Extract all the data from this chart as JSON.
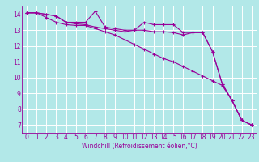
{
  "xlabel": "Windchill (Refroidissement éolien,°C)",
  "background_color": "#b2e8e8",
  "grid_color": "#ffffff",
  "line_color": "#990099",
  "x_ticks": [
    0,
    1,
    2,
    3,
    4,
    5,
    6,
    7,
    8,
    9,
    10,
    11,
    12,
    13,
    14,
    15,
    16,
    17,
    18,
    19,
    20,
    21,
    22,
    23
  ],
  "y_ticks": [
    7,
    8,
    9,
    10,
    11,
    12,
    13,
    14
  ],
  "ylim": [
    6.5,
    14.5
  ],
  "xlim": [
    -0.5,
    23.5
  ],
  "series": [
    [
      14.1,
      14.1,
      14.0,
      13.9,
      13.5,
      13.5,
      13.5,
      14.2,
      13.2,
      13.1,
      13.0,
      13.0,
      13.5,
      13.35,
      13.35,
      13.35,
      12.85,
      12.85,
      12.85,
      11.65,
      9.6,
      8.55,
      7.3,
      7.0
    ],
    [
      14.1,
      14.1,
      14.0,
      13.9,
      13.5,
      13.4,
      13.35,
      13.2,
      13.1,
      13.0,
      12.9,
      13.0,
      13.0,
      12.9,
      12.9,
      12.85,
      12.7,
      12.85,
      12.85,
      11.65,
      9.6,
      8.55,
      7.3,
      7.0
    ],
    [
      14.1,
      14.1,
      13.8,
      13.5,
      13.35,
      13.3,
      13.3,
      13.1,
      12.9,
      12.7,
      12.4,
      12.1,
      11.8,
      11.5,
      11.2,
      11.0,
      10.7,
      10.4,
      10.1,
      9.8,
      9.5,
      8.55,
      7.3,
      7.0
    ]
  ],
  "tick_fontsize": 5.5,
  "xlabel_fontsize": 5.5
}
